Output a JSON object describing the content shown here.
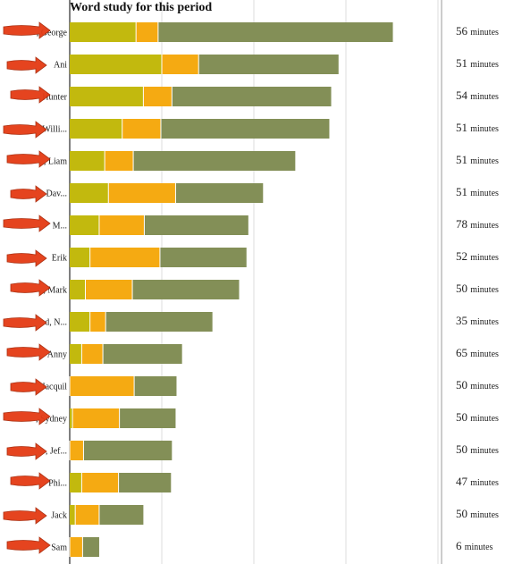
{
  "colors": {
    "segment1": "#c2b90e",
    "segment2": "#f5aa12",
    "segment3": "#838f57",
    "grid": "#dcdcdc",
    "axis": "#555555",
    "arrow": "#e43b14"
  },
  "chart_data": {
    "type": "bar",
    "orientation": "horizontal",
    "stacked": true,
    "title": "Word study for this period",
    "categories": [
      ", George",
      "Ani",
      "Hunter",
      "Willi...",
      ", Liam",
      "Dav...",
      "M...",
      "Erik",
      ", Mark",
      "d, N...",
      "Anny",
      "Jacquil",
      ", Sydney",
      ", Jef...",
      "Phi...",
      "Jack",
      "Sam"
    ],
    "series": [
      {
        "values": [
          72,
          100,
          80,
          57,
          38,
          42,
          32,
          22,
          17,
          22,
          13,
          0,
          3,
          0,
          13,
          6,
          0
        ]
      },
      {
        "values": [
          24,
          40,
          31,
          42,
          31,
          73,
          49,
          76,
          51,
          17,
          23,
          70,
          51,
          15,
          40,
          26,
          14
        ]
      },
      {
        "values": [
          255,
          152,
          173,
          183,
          176,
          95,
          113,
          94,
          116,
          116,
          86,
          46,
          61,
          96,
          57,
          48,
          18
        ]
      }
    ],
    "minutes": [
      "56",
      "51",
      "54",
      "51",
      "51",
      "51",
      "78",
      "52",
      "50",
      "35",
      "65",
      "50",
      "50",
      "50",
      "47",
      "50",
      "6"
    ],
    "minutes_unit": "minutes",
    "xlim": [
      0,
      400
    ],
    "grid": true,
    "annotation_arrows": true
  }
}
